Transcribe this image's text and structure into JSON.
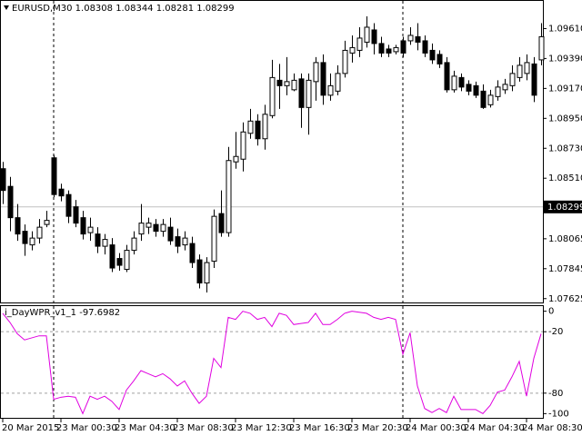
{
  "chart_data": [
    {
      "type": "candlestick",
      "title": "EURUSD,M30  1.08308 1.08344 1.08281 1.08299",
      "open": [
        1.0858,
        1.0845,
        1.0822,
        1.0812,
        1.0802,
        1.0807,
        1.0817,
        1.0866,
        1.0843,
        1.0839,
        1.083,
        1.0822,
        1.0811,
        1.081,
        1.0801,
        1.0802,
        1.0792,
        1.0784,
        1.0798,
        1.081,
        1.0815,
        1.0817,
        1.0812,
        1.0815,
        1.0808,
        1.0802,
        1.0803,
        1.0791,
        1.0774,
        1.079,
        1.0825,
        1.0811,
        1.0863,
        1.0865,
        1.0884,
        1.0893,
        1.088,
        1.0897,
        1.0923,
        1.0919,
        1.0916,
        1.0924,
        1.0903,
        1.0922,
        1.0936,
        1.0912,
        1.0915,
        1.0928,
        1.0943,
        1.0945,
        1.0951,
        1.096,
        1.095,
        1.0946,
        1.0944,
        1.0952,
        1.0952,
        1.0955,
        1.0952,
        1.0945,
        1.0942,
        1.0936,
        1.0916,
        1.0925,
        1.092,
        1.0919,
        1.0915,
        1.0905,
        1.0911,
        1.0916,
        1.0919,
        1.0925,
        1.0928,
        1.0935,
        1.0938
      ],
      "high": [
        1.0863,
        1.0852,
        1.0832,
        1.0817,
        1.0812,
        1.0821,
        1.0827,
        1.0868,
        1.0847,
        1.0842,
        1.0835,
        1.0827,
        1.0822,
        1.0815,
        1.081,
        1.0807,
        1.0796,
        1.0802,
        1.0812,
        1.0832,
        1.0822,
        1.0821,
        1.0821,
        1.0822,
        1.0814,
        1.0812,
        1.0808,
        1.0795,
        1.0793,
        1.0828,
        1.0842,
        1.0874,
        1.0885,
        1.0892,
        1.0902,
        1.0898,
        1.0905,
        1.0938,
        1.0935,
        1.094,
        1.0928,
        1.0928,
        1.0928,
        1.094,
        1.0942,
        1.0928,
        1.0934,
        1.0952,
        1.0956,
        1.0962,
        1.097,
        1.0965,
        1.0955,
        1.0949,
        1.0949,
        1.0955,
        1.0962,
        1.0965,
        1.0956,
        1.095,
        1.0945,
        1.094,
        1.093,
        1.0928,
        1.0923,
        1.0922,
        1.092,
        1.0916,
        1.0923,
        1.0924,
        1.0934,
        1.094,
        1.0942,
        1.094,
        1.0965
      ],
      "low": [
        1.0832,
        1.0812,
        1.0805,
        1.0794,
        1.0798,
        1.0803,
        1.0815,
        1.0837,
        1.0834,
        1.0818,
        1.0815,
        1.0806,
        1.0805,
        1.0796,
        1.0795,
        1.0782,
        1.0783,
        1.0782,
        1.0795,
        1.0805,
        1.081,
        1.0808,
        1.0808,
        1.0802,
        1.0796,
        1.0798,
        1.0785,
        1.077,
        1.0767,
        1.0785,
        1.0808,
        1.0808,
        1.0858,
        1.0856,
        1.088,
        1.0875,
        1.0872,
        1.0895,
        1.0902,
        1.0912,
        1.0915,
        1.0888,
        1.0883,
        1.0908,
        1.0905,
        1.0908,
        1.0912,
        1.0925,
        1.0936,
        1.094,
        1.0947,
        1.0942,
        1.094,
        1.094,
        1.0942,
        1.094,
        1.0949,
        1.0945,
        1.094,
        1.0935,
        1.0932,
        1.0914,
        1.0914,
        1.0915,
        1.0912,
        1.091,
        1.0902,
        1.0903,
        1.0908,
        1.0913,
        1.0915,
        1.0922,
        1.0923,
        1.0907,
        1.0934
      ],
      "close": [
        1.0842,
        1.0822,
        1.081,
        1.0803,
        1.0807,
        1.0815,
        1.082,
        1.0839,
        1.0838,
        1.0823,
        1.0818,
        1.081,
        1.0815,
        1.0801,
        1.0806,
        1.0785,
        1.0787,
        1.0798,
        1.0807,
        1.0818,
        1.0818,
        1.0812,
        1.0817,
        1.0805,
        1.0801,
        1.0807,
        1.0789,
        1.0774,
        1.0789,
        1.0823,
        1.0811,
        1.0864,
        1.0867,
        1.0885,
        1.0893,
        1.088,
        1.0898,
        1.0925,
        1.0919,
        1.0922,
        1.0923,
        1.0903,
        1.0923,
        1.0936,
        1.0912,
        1.0919,
        1.0928,
        1.0945,
        1.0947,
        1.0954,
        1.0962,
        1.095,
        1.0943,
        1.0943,
        1.0947,
        1.0943,
        1.0956,
        1.0951,
        1.0943,
        1.0938,
        1.0935,
        1.0916,
        1.0926,
        1.0918,
        1.0915,
        1.0912,
        1.0903,
        1.0912,
        1.0918,
        1.092,
        1.0928,
        1.0934,
        1.0936,
        1.0912,
        1.0955
      ],
      "up_color": "#ffffff",
      "down_color": "#000000",
      "ylim": [
        1.0759,
        1.0982
      ],
      "yticks": [
        {
          "value": 1.0961,
          "label": "1.09610"
        },
        {
          "value": 1.0939,
          "label": "1.09390"
        },
        {
          "value": 1.0917,
          "label": "1.09170"
        },
        {
          "value": 1.0895,
          "label": "1.08950"
        },
        {
          "value": 1.0873,
          "label": "1.08730"
        },
        {
          "value": 1.0851,
          "label": "1.08510"
        },
        1.08065,
        1.07845,
        1.07625
      ],
      "price_line": 1.08299
    },
    {
      "type": "line",
      "title": "i_DayWPR_v1_1 -97.6982",
      "categories": [
        "20 Mar 2015",
        null,
        null,
        null,
        null,
        null,
        null,
        null,
        "23 Mar 00:30",
        null,
        null,
        null,
        null,
        null,
        null,
        null,
        "23 Mar 04:30",
        null,
        null,
        null,
        null,
        null,
        null,
        null,
        "23 Mar 08:30",
        null,
        null,
        null,
        null,
        null,
        null,
        null,
        "23 Mar 12:30",
        null,
        null,
        null,
        null,
        null,
        null,
        null,
        "23 Mar 16:30",
        null,
        null,
        null,
        null,
        null,
        null,
        null,
        "23 Mar 20:30",
        null,
        null,
        null,
        null,
        null,
        null,
        null,
        "24 Mar 00:30",
        null,
        null,
        null,
        null,
        null,
        null,
        null,
        "24 Mar 04:30",
        null,
        null,
        null,
        null,
        null,
        null,
        null,
        "24 Mar 08:30",
        null,
        null
      ],
      "series": [
        {
          "color": "#e000e0",
          "values": [
            -2,
            -11,
            -22,
            -28,
            -26,
            -24,
            -24,
            -86,
            -84,
            -83,
            -84,
            -100,
            -83,
            -86,
            -83,
            -88,
            -96,
            -77,
            -68,
            -58,
            -61,
            -64,
            -61,
            -66,
            -73,
            -68,
            -80,
            -90,
            -83,
            -46,
            -55,
            -6,
            -8,
            0,
            -2,
            -8,
            -6,
            -15,
            -2,
            -4,
            -13,
            -12,
            -11,
            -2,
            -13,
            -13,
            -8,
            -2,
            0,
            -1,
            -2,
            -6,
            -8,
            -6,
            -8,
            -42,
            -21,
            -73,
            -95,
            -99,
            -95,
            -99,
            -83,
            -96,
            -96,
            -96,
            -100,
            -92,
            -79,
            -77,
            -64,
            -49,
            -83,
            -46,
            -22
          ]
        }
      ],
      "ylim": [
        -105,
        5
      ],
      "yticks": [
        0,
        -20,
        -80,
        -100
      ],
      "levels": [
        -20,
        -80
      ]
    }
  ]
}
